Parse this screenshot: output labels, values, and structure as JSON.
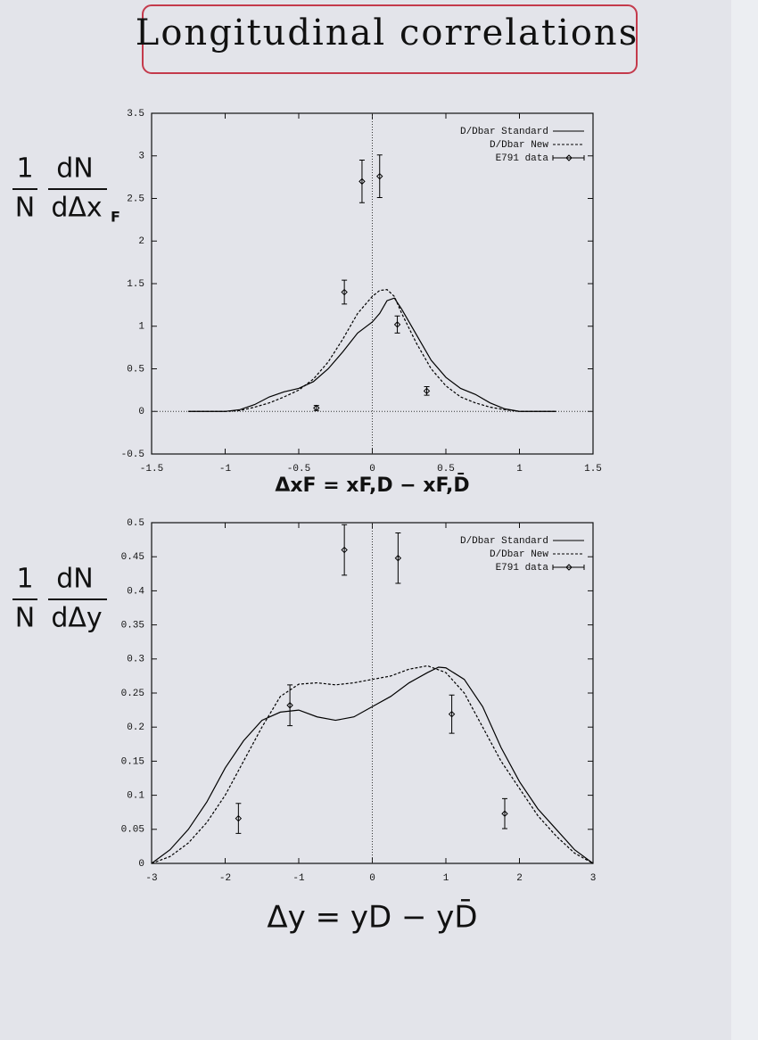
{
  "title": "Longitudinal correlations",
  "chart_data": [
    {
      "type": "line",
      "ylabel": {
        "factor": [
          "1",
          "N"
        ],
        "derivative": [
          "dN",
          "dΔx"
        ],
        "subscript": "F"
      },
      "xlabel": "ΔxF = xF,D − xF,D̄",
      "xlim": [
        -1.5,
        1.5
      ],
      "xticks": [
        -1.5,
        -1,
        -0.5,
        0,
        0.5,
        1,
        1.5
      ],
      "ylim": [
        -0.5,
        3.5
      ],
      "yticks": [
        -0.5,
        0,
        0.5,
        1,
        1.5,
        2,
        2.5,
        3,
        3.5
      ],
      "zero_lines": true,
      "legend": "top-right",
      "series": [
        {
          "name": "D/Dbar Standard",
          "color": "#000000",
          "style": "solid",
          "x": [
            -1.25,
            -1.0,
            -0.9,
            -0.8,
            -0.7,
            -0.6,
            -0.5,
            -0.4,
            -0.3,
            -0.2,
            -0.1,
            0,
            0.05,
            0.1,
            0.15,
            0.2,
            0.3,
            0.4,
            0.5,
            0.6,
            0.7,
            0.8,
            0.9,
            1.0,
            1.25
          ],
          "values": [
            0,
            0,
            0.02,
            0.08,
            0.17,
            0.23,
            0.27,
            0.35,
            0.5,
            0.7,
            0.92,
            1.05,
            1.15,
            1.3,
            1.33,
            1.2,
            0.9,
            0.6,
            0.4,
            0.27,
            0.2,
            0.1,
            0.03,
            0,
            0
          ]
        },
        {
          "name": "D/Dbar New",
          "color": "#000000",
          "style": "dashed",
          "x": [
            -1.25,
            -1.0,
            -0.9,
            -0.8,
            -0.7,
            -0.6,
            -0.5,
            -0.4,
            -0.3,
            -0.2,
            -0.1,
            0,
            0.05,
            0.1,
            0.15,
            0.2,
            0.3,
            0.4,
            0.5,
            0.6,
            0.7,
            0.8,
            0.9,
            1.0,
            1.25
          ],
          "values": [
            0,
            0,
            0.01,
            0.05,
            0.1,
            0.17,
            0.25,
            0.38,
            0.58,
            0.85,
            1.15,
            1.35,
            1.42,
            1.43,
            1.35,
            1.15,
            0.8,
            0.5,
            0.3,
            0.17,
            0.1,
            0.05,
            0.02,
            0,
            0
          ]
        },
        {
          "name": "E791 data",
          "color": "#000000",
          "style": "points",
          "x": [
            -0.38,
            -0.19,
            -0.07,
            0.05,
            0.17,
            0.37
          ],
          "values": [
            0.04,
            1.4,
            2.7,
            2.76,
            1.02,
            0.24
          ],
          "errors": [
            0.03,
            0.14,
            0.25,
            0.25,
            0.1,
            0.05
          ]
        }
      ]
    },
    {
      "type": "line",
      "ylabel": {
        "factor": [
          "1",
          "N"
        ],
        "derivative": [
          "dN",
          "dΔy"
        ]
      },
      "xlabel": "Δy = yD − yD̄",
      "xlim": [
        -3,
        3
      ],
      "xticks": [
        -3,
        -2,
        -1,
        0,
        1,
        2,
        3
      ],
      "ylim": [
        0,
        0.5
      ],
      "yticks": [
        0,
        0.05,
        0.1,
        0.15,
        0.2,
        0.25,
        0.3,
        0.35,
        0.4,
        0.45,
        0.5
      ],
      "zero_lines": true,
      "legend": "top-right",
      "series": [
        {
          "name": "D/Dbar Standard",
          "color": "#000000",
          "style": "solid",
          "x": [
            -3,
            -2.75,
            -2.5,
            -2.25,
            -2,
            -1.75,
            -1.5,
            -1.25,
            -1,
            -0.75,
            -0.5,
            -0.25,
            0,
            0.25,
            0.5,
            0.75,
            0.9,
            1,
            1.25,
            1.5,
            1.75,
            2,
            2.25,
            2.5,
            2.75,
            3
          ],
          "values": [
            0,
            0.02,
            0.05,
            0.09,
            0.14,
            0.18,
            0.21,
            0.222,
            0.225,
            0.215,
            0.21,
            0.215,
            0.23,
            0.245,
            0.265,
            0.28,
            0.288,
            0.287,
            0.27,
            0.23,
            0.17,
            0.12,
            0.08,
            0.05,
            0.02,
            0
          ]
        },
        {
          "name": "D/Dbar New",
          "color": "#000000",
          "style": "dashed",
          "x": [
            -3,
            -2.75,
            -2.5,
            -2.25,
            -2,
            -1.75,
            -1.5,
            -1.25,
            -1,
            -0.75,
            -0.5,
            -0.25,
            0,
            0.25,
            0.5,
            0.75,
            1,
            1.25,
            1.5,
            1.75,
            2,
            2.25,
            2.5,
            2.75,
            3
          ],
          "values": [
            0,
            0.01,
            0.03,
            0.06,
            0.1,
            0.15,
            0.2,
            0.245,
            0.263,
            0.265,
            0.262,
            0.265,
            0.27,
            0.275,
            0.285,
            0.29,
            0.28,
            0.25,
            0.2,
            0.15,
            0.11,
            0.07,
            0.04,
            0.015,
            0
          ]
        },
        {
          "name": "E791 data",
          "color": "#000000",
          "style": "points",
          "x": [
            -1.82,
            -1.12,
            -0.38,
            0.35,
            1.08,
            1.8
          ],
          "values": [
            0.066,
            0.232,
            0.46,
            0.448,
            0.219,
            0.073
          ],
          "errors": [
            0.022,
            0.03,
            0.037,
            0.037,
            0.028,
            0.022
          ]
        }
      ]
    }
  ]
}
